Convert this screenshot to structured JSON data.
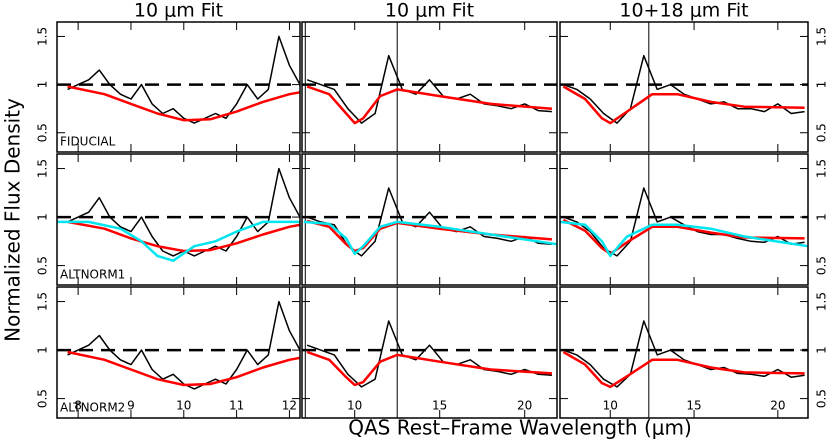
{
  "figure": {
    "xlabel": "QAS Rest–Frame Wavelength (μm)",
    "ylabel": "Normalized Flux Density"
  },
  "chart_data": [
    {
      "type": "line",
      "title": "10 μm Fit",
      "annotation": "FIDUCIAL",
      "xlim": [
        7.6,
        12.2
      ],
      "ylim": [
        0.3,
        1.65
      ],
      "xticks": [
        8,
        9,
        10,
        11,
        12
      ],
      "yticks": [
        0.5,
        1,
        1.5
      ],
      "reference_line": 1,
      "vline": 12.3,
      "series": [
        {
          "color": "#000000",
          "x": [
            7.8,
            8.0,
            8.2,
            8.4,
            8.6,
            8.8,
            9.0,
            9.2,
            9.4,
            9.6,
            9.8,
            10.0,
            10.2,
            10.4,
            10.6,
            10.8,
            11.0,
            11.2,
            11.4,
            11.6,
            11.8,
            12.0,
            12.2
          ],
          "values": [
            0.95,
            1.0,
            1.05,
            1.15,
            1.0,
            0.9,
            0.85,
            1.0,
            0.8,
            0.7,
            0.75,
            0.65,
            0.6,
            0.65,
            0.7,
            0.65,
            0.8,
            1.0,
            0.85,
            0.95,
            1.5,
            1.2,
            1.0
          ]
        },
        {
          "color": "#ff0000",
          "x": [
            7.8,
            8.5,
            9.0,
            9.5,
            10.0,
            10.5,
            11.0,
            11.5,
            12.0,
            12.2
          ],
          "values": [
            0.98,
            0.9,
            0.8,
            0.7,
            0.63,
            0.64,
            0.72,
            0.82,
            0.9,
            0.92
          ]
        }
      ]
    },
    {
      "type": "line",
      "title": "10 μm Fit",
      "xlim": [
        6.9,
        21.9
      ],
      "ylim": [
        0.3,
        1.65
      ],
      "xticks": [
        10,
        15,
        20
      ],
      "yticks": [
        0.5,
        1,
        1.5
      ],
      "reference_line": 1,
      "vline": 12.5,
      "series": [
        {
          "color": "#000000",
          "x": [
            7.2,
            8,
            8.8,
            9.6,
            10.4,
            11.2,
            12,
            12.8,
            13.6,
            14.4,
            15.2,
            16,
            16.8,
            17.6,
            18.4,
            19.2,
            20,
            20.8,
            21.6
          ],
          "values": [
            1.05,
            1.0,
            0.95,
            0.75,
            0.6,
            0.7,
            1.3,
            0.95,
            0.9,
            1.05,
            0.88,
            0.85,
            0.9,
            0.8,
            0.78,
            0.75,
            0.8,
            0.73,
            0.72
          ]
        },
        {
          "color": "#ff0000",
          "x": [
            7.2,
            8.5,
            9.5,
            10,
            10.5,
            11.5,
            12.5,
            15,
            18,
            21.6
          ],
          "values": [
            0.98,
            0.9,
            0.7,
            0.6,
            0.65,
            0.88,
            0.95,
            0.88,
            0.8,
            0.75
          ]
        }
      ]
    },
    {
      "type": "line",
      "title": "10+18 μm Fit",
      "xlim": [
        7.0,
        21.8
      ],
      "ylim": [
        0.3,
        1.65
      ],
      "xticks": [
        10,
        15,
        20
      ],
      "yticks": [
        0.5,
        1,
        1.5
      ],
      "reference_line": 1,
      "vline": 12.3,
      "series": [
        {
          "color": "#000000",
          "x": [
            7.2,
            8,
            8.8,
            9.6,
            10.4,
            11.2,
            12,
            12.8,
            13.6,
            14.4,
            15.2,
            16,
            16.8,
            17.6,
            18.4,
            19.2,
            20,
            20.8,
            21.6
          ],
          "values": [
            1.0,
            0.95,
            0.85,
            0.7,
            0.6,
            0.75,
            1.3,
            0.95,
            1.0,
            0.9,
            0.85,
            0.8,
            0.82,
            0.75,
            0.75,
            0.72,
            0.8,
            0.7,
            0.72
          ]
        },
        {
          "color": "#ff0000",
          "x": [
            7.2,
            8.5,
            9.5,
            10,
            11,
            12.5,
            14,
            16,
            18,
            21.6
          ],
          "values": [
            0.98,
            0.85,
            0.65,
            0.6,
            0.72,
            0.9,
            0.9,
            0.82,
            0.77,
            0.76
          ]
        }
      ]
    },
    {
      "type": "line",
      "annotation": "ALTNORM1",
      "xlim": [
        7.6,
        12.2
      ],
      "ylim": [
        0.3,
        1.65
      ],
      "xticks": [
        8,
        9,
        10,
        11,
        12
      ],
      "yticks": [
        0.5,
        1,
        1.5
      ],
      "reference_line": 1,
      "vline": 12.3,
      "series": [
        {
          "color": "#000000",
          "x": [
            7.8,
            8.0,
            8.2,
            8.4,
            8.6,
            8.8,
            9.0,
            9.2,
            9.4,
            9.6,
            9.8,
            10.0,
            10.2,
            10.4,
            10.6,
            10.8,
            11.0,
            11.2,
            11.4,
            11.6,
            11.8,
            12.0,
            12.2
          ],
          "values": [
            0.95,
            1.0,
            1.05,
            1.2,
            1.0,
            0.9,
            0.85,
            1.0,
            0.8,
            0.65,
            0.6,
            0.65,
            0.6,
            0.65,
            0.7,
            0.65,
            0.8,
            1.0,
            0.85,
            0.95,
            1.5,
            1.2,
            1.0
          ]
        },
        {
          "color": "#ff0000",
          "x": [
            7.8,
            8.5,
            9.0,
            9.5,
            10.0,
            10.5,
            11.0,
            11.5,
            12.0,
            12.2
          ],
          "values": [
            0.95,
            0.88,
            0.78,
            0.7,
            0.65,
            0.66,
            0.73,
            0.82,
            0.9,
            0.92
          ]
        },
        {
          "color": "#00e5ee",
          "x": [
            7.6,
            8.2,
            8.8,
            9.2,
            9.5,
            9.8,
            10.2,
            10.6,
            11.0,
            11.5,
            12.2
          ],
          "values": [
            0.95,
            0.95,
            0.88,
            0.75,
            0.6,
            0.55,
            0.7,
            0.75,
            0.85,
            0.95,
            0.95
          ]
        }
      ]
    },
    {
      "type": "line",
      "xlim": [
        6.9,
        21.9
      ],
      "ylim": [
        0.3,
        1.65
      ],
      "xticks": [
        10,
        15,
        20
      ],
      "yticks": [
        0.5,
        1,
        1.5
      ],
      "reference_line": 1,
      "vline": 12.5,
      "series": [
        {
          "color": "#000000",
          "x": [
            7.2,
            8,
            8.8,
            9.6,
            10.4,
            11.2,
            12,
            12.8,
            13.6,
            14.4,
            15.2,
            16,
            16.8,
            17.6,
            18.4,
            19.2,
            20,
            20.8,
            21.6
          ],
          "values": [
            1.0,
            0.95,
            0.92,
            0.7,
            0.6,
            0.75,
            1.3,
            0.95,
            0.9,
            1.05,
            0.88,
            0.85,
            0.9,
            0.8,
            0.78,
            0.75,
            0.8,
            0.73,
            0.72
          ]
        },
        {
          "color": "#ff0000",
          "x": [
            7.2,
            8.5,
            9.5,
            10,
            10.5,
            11.5,
            12.5,
            15,
            18,
            21.6
          ],
          "values": [
            0.96,
            0.9,
            0.72,
            0.65,
            0.68,
            0.88,
            0.94,
            0.88,
            0.82,
            0.77
          ]
        },
        {
          "color": "#00e5ee",
          "x": [
            7.0,
            8.5,
            9.5,
            10,
            10.5,
            11.5,
            12.5,
            15,
            18,
            21.9
          ],
          "values": [
            0.95,
            0.93,
            0.78,
            0.62,
            0.7,
            0.9,
            0.95,
            0.9,
            0.82,
            0.72
          ]
        }
      ]
    },
    {
      "type": "line",
      "xlim": [
        7.0,
        21.8
      ],
      "ylim": [
        0.3,
        1.65
      ],
      "xticks": [
        10,
        15,
        20
      ],
      "yticks": [
        0.5,
        1,
        1.5
      ],
      "reference_line": 1,
      "vline": 12.3,
      "series": [
        {
          "color": "#000000",
          "x": [
            7.2,
            8,
            8.8,
            9.6,
            10.4,
            11.2,
            12,
            12.8,
            13.6,
            14.4,
            15.2,
            16,
            16.8,
            17.6,
            18.4,
            19.2,
            20,
            20.8,
            21.6
          ],
          "values": [
            1.0,
            0.95,
            0.85,
            0.68,
            0.6,
            0.75,
            1.3,
            0.95,
            1.0,
            0.92,
            0.85,
            0.82,
            0.82,
            0.78,
            0.75,
            0.74,
            0.8,
            0.72,
            0.74
          ]
        },
        {
          "color": "#ff0000",
          "x": [
            7.2,
            8.5,
            9.5,
            10,
            11,
            12.5,
            14,
            16,
            18,
            21.6
          ],
          "values": [
            0.97,
            0.86,
            0.68,
            0.62,
            0.74,
            0.9,
            0.9,
            0.84,
            0.79,
            0.78
          ]
        },
        {
          "color": "#00e5ee",
          "x": [
            7.0,
            8.5,
            9.5,
            10,
            11,
            12.5,
            14,
            16,
            18,
            21.8
          ],
          "values": [
            0.95,
            0.92,
            0.75,
            0.6,
            0.8,
            0.92,
            0.92,
            0.88,
            0.8,
            0.7
          ]
        }
      ]
    },
    {
      "type": "line",
      "annotation": "ALTNORM2",
      "xlim": [
        7.6,
        12.2
      ],
      "ylim": [
        0.3,
        1.65
      ],
      "xticks": [
        8,
        9,
        10,
        11,
        12
      ],
      "yticks": [
        0.5,
        1,
        1.5
      ],
      "reference_line": 1,
      "vline": 12.3,
      "series": [
        {
          "color": "#000000",
          "x": [
            7.8,
            8.0,
            8.2,
            8.4,
            8.6,
            8.8,
            9.0,
            9.2,
            9.4,
            9.6,
            9.8,
            10.0,
            10.2,
            10.4,
            10.6,
            10.8,
            11.0,
            11.2,
            11.4,
            11.6,
            11.8,
            12.0,
            12.2
          ],
          "values": [
            0.95,
            1.0,
            1.05,
            1.15,
            1.0,
            0.9,
            0.85,
            1.0,
            0.8,
            0.7,
            0.75,
            0.65,
            0.6,
            0.65,
            0.7,
            0.65,
            0.8,
            1.0,
            0.85,
            0.95,
            1.5,
            1.2,
            1.0
          ]
        },
        {
          "color": "#ff0000",
          "x": [
            7.8,
            8.5,
            9.0,
            9.5,
            10.0,
            10.5,
            11.0,
            11.5,
            12.0,
            12.2
          ],
          "values": [
            0.98,
            0.9,
            0.8,
            0.7,
            0.64,
            0.65,
            0.72,
            0.82,
            0.9,
            0.92
          ]
        }
      ]
    },
    {
      "type": "line",
      "xlim": [
        6.9,
        21.9
      ],
      "ylim": [
        0.3,
        1.65
      ],
      "xticks": [
        10,
        15,
        20
      ],
      "yticks": [
        0.5,
        1,
        1.5
      ],
      "reference_line": 1,
      "vline": 12.5,
      "series": [
        {
          "color": "#000000",
          "x": [
            7.2,
            8,
            8.8,
            9.6,
            10.4,
            11.2,
            12,
            12.8,
            13.6,
            14.4,
            15.2,
            16,
            16.8,
            17.6,
            18.4,
            19.2,
            20,
            20.8,
            21.6
          ],
          "values": [
            1.05,
            1.0,
            0.95,
            0.75,
            0.62,
            0.7,
            1.3,
            0.95,
            0.9,
            1.05,
            0.88,
            0.85,
            0.9,
            0.8,
            0.78,
            0.75,
            0.8,
            0.75,
            0.74
          ]
        },
        {
          "color": "#ff0000",
          "x": [
            7.2,
            8.5,
            9.5,
            10,
            10.5,
            11.5,
            12.5,
            15,
            18,
            21.6
          ],
          "values": [
            0.98,
            0.9,
            0.72,
            0.64,
            0.67,
            0.88,
            0.95,
            0.88,
            0.8,
            0.76
          ]
        }
      ]
    },
    {
      "type": "line",
      "xlim": [
        7.0,
        21.8
      ],
      "ylim": [
        0.3,
        1.65
      ],
      "xticks": [
        10,
        15,
        20
      ],
      "yticks": [
        0.5,
        1,
        1.5
      ],
      "reference_line": 1,
      "vline": 12.3,
      "series": [
        {
          "color": "#000000",
          "x": [
            7.2,
            8,
            8.8,
            9.6,
            10.4,
            11.2,
            12,
            12.8,
            13.6,
            14.4,
            15.2,
            16,
            16.8,
            17.6,
            18.4,
            19.2,
            20,
            20.8,
            21.6
          ],
          "values": [
            1.0,
            0.95,
            0.85,
            0.7,
            0.62,
            0.75,
            1.3,
            0.95,
            1.0,
            0.9,
            0.85,
            0.8,
            0.82,
            0.76,
            0.75,
            0.73,
            0.8,
            0.72,
            0.74
          ]
        },
        {
          "color": "#ff0000",
          "x": [
            7.2,
            8.5,
            9.5,
            10,
            11,
            12.5,
            14,
            16,
            18,
            21.6
          ],
          "values": [
            0.98,
            0.85,
            0.66,
            0.62,
            0.73,
            0.9,
            0.9,
            0.82,
            0.77,
            0.76
          ]
        }
      ]
    }
  ]
}
